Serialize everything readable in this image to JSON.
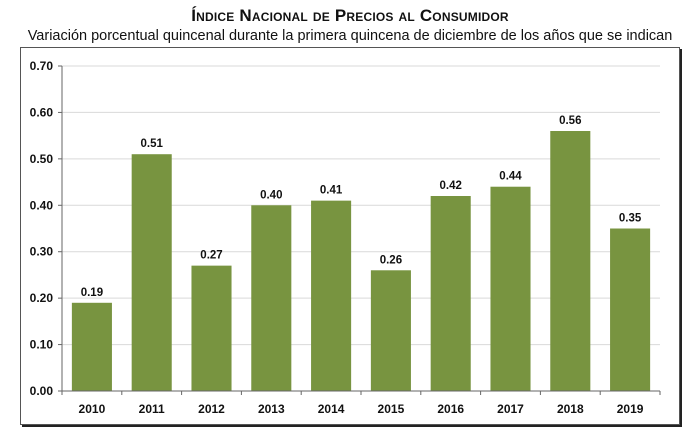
{
  "chart_data": {
    "type": "bar",
    "title": "Índice Nacional de Precios al Consumidor",
    "subtitle": "Variación porcentual quincenal durante la primera quincena de diciembre de los años que se indican",
    "xlabel": "",
    "ylabel": "",
    "categories": [
      "2010",
      "2011",
      "2012",
      "2013",
      "2014",
      "2015",
      "2016",
      "2017",
      "2018",
      "2019"
    ],
    "values": [
      0.19,
      0.51,
      0.27,
      0.4,
      0.41,
      0.26,
      0.42,
      0.44,
      0.56,
      0.35
    ],
    "data_labels": [
      "0.19",
      "0.51",
      "0.27",
      "0.40",
      "0.41",
      "0.26",
      "0.42",
      "0.44",
      "0.56",
      "0.35"
    ],
    "ylim": [
      0,
      0.7
    ],
    "yticks": [
      0.0,
      0.1,
      0.2,
      0.3,
      0.4,
      0.5,
      0.6,
      0.7
    ],
    "ytick_labels": [
      "0.00",
      "0.10",
      "0.20",
      "0.30",
      "0.40",
      "0.50",
      "0.60",
      "0.70"
    ],
    "grid": true,
    "legend": "none",
    "bar_color": "#789440",
    "grid_color": "#d9d9d9"
  }
}
